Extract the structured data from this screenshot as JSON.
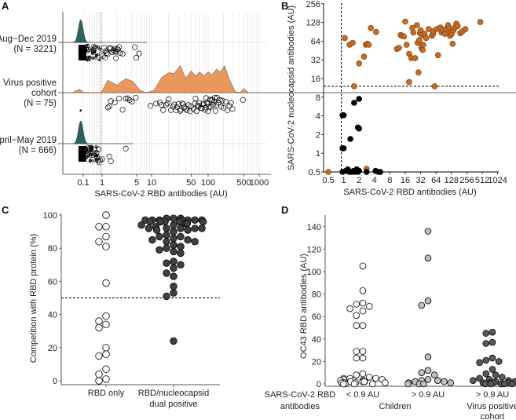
{
  "chart_data": [
    {
      "panel": "A",
      "type": "scatter",
      "subtype": "raincloud (density + jittered points)",
      "xlabel": "SARS-CoV-2 RBD antibodies (AU)",
      "xscale": "pseudo-log",
      "xlim": [
        0.03,
        1100
      ],
      "xticks": [
        "0.1",
        "1",
        "5",
        "10",
        "50",
        "100",
        "500",
        "1000"
      ],
      "xtick_values": [
        0.1,
        1,
        5,
        10,
        50,
        100,
        500,
        1000
      ],
      "threshold_line": {
        "x": 0.9,
        "style": "dashed",
        "color": "#e8a0a0"
      },
      "grid": "vertical minor log gridlines",
      "groups": [
        {
          "label_lines": [
            "Aug−Dec 2019",
            "(N = 3221)"
          ],
          "density_color": "#2f5f5f",
          "density_peak_x": 0.085,
          "dense_cluster": {
            "x_from": 0.07,
            "x_to": 0.9
          },
          "points": [
            0.95,
            1.1,
            1.2,
            1.3,
            1.5,
            1.6,
            1.7,
            1.8,
            1.9,
            2.0,
            2.1,
            2.2,
            1.05,
            1.4,
            1.25,
            1.8,
            2.6,
            2.3,
            4.6,
            4.9,
            5.6,
            1.15,
            1.9
          ]
        },
        {
          "label_lines": [
            "Virus positive",
            "cohort",
            "(N = 75)"
          ],
          "density_color": "#e8975e",
          "density_curve": [
            [
              0.05,
              0
            ],
            [
              0.08,
              0.09
            ],
            [
              0.11,
              0
            ],
            [
              0.9,
              0
            ],
            [
              1.3,
              0.33
            ],
            [
              2.0,
              0.2
            ],
            [
              3.0,
              0.37
            ],
            [
              4.2,
              0.3
            ],
            [
              6,
              0.05
            ],
            [
              8,
              0
            ],
            [
              11,
              0.06
            ],
            [
              15,
              0.4
            ],
            [
              20,
              0.53
            ],
            [
              25,
              0.51
            ],
            [
              32,
              0.72
            ],
            [
              40,
              0.38
            ],
            [
              50,
              0.58
            ],
            [
              60,
              0.44
            ],
            [
              70,
              0.55
            ],
            [
              85,
              0.45
            ],
            [
              100,
              0.55
            ],
            [
              120,
              0.48
            ],
            [
              145,
              0.62
            ],
            [
              175,
              0.55
            ],
            [
              210,
              0.72
            ],
            [
              260,
              0.35
            ],
            [
              340,
              0.03
            ],
            [
              420,
              0
            ],
            [
              500,
              0.11
            ],
            [
              620,
              0
            ]
          ],
          "points": [
            0.085,
            1.3,
            1.4,
            1.5,
            1.8,
            2.2,
            2.6,
            3.0,
            3.3,
            3.6,
            4.0,
            4.8,
            9.5,
            12,
            14,
            15,
            16,
            18,
            19,
            20,
            22,
            24,
            25,
            27,
            28,
            30,
            32,
            33,
            35,
            36,
            38,
            40,
            42,
            45,
            48,
            50,
            55,
            58,
            60,
            62,
            65,
            68,
            70,
            74,
            78,
            80,
            84,
            88,
            90,
            92,
            95,
            98,
            100,
            104,
            108,
            112,
            118,
            120,
            125,
            130,
            135,
            140,
            145,
            150,
            160,
            170,
            180,
            190,
            200,
            220,
            240,
            260,
            280,
            300,
            480
          ]
        },
        {
          "label_lines": [
            "April−May 2019",
            "(N = 666)"
          ],
          "density_color": "#2f5f5f",
          "density_peak_x": 0.085,
          "dense_cluster": {
            "x_from": 0.07,
            "x_to": 0.6
          },
          "points": [
            0.6,
            0.7,
            0.8,
            1.0,
            1.4,
            1.5,
            3.0,
            0.5,
            0.55,
            0.65
          ]
        }
      ]
    },
    {
      "panel": "B",
      "type": "scatter",
      "xlabel": "SARS-CoV-2 RBD antibodies (AU)",
      "ylabel": "SARS-CoV-2 nucleocapsid antibodies (AU)",
      "xscale": "log2",
      "yscale": "log2",
      "xlim": [
        0.45,
        1024
      ],
      "ylim": [
        0.5,
        256
      ],
      "xticks": [
        "0.5",
        "1",
        "2",
        "4",
        "8",
        "16",
        "32",
        "64",
        "128",
        "256",
        "512",
        "1024"
      ],
      "yticks": [
        "0.5",
        "1",
        "2",
        "4",
        "8",
        "16",
        "32",
        "64",
        "128",
        "256"
      ],
      "threshold_x": 0.9,
      "threshold_y": 12,
      "series": [
        {
          "name": "dual positive (orange)",
          "color": "#c96a21",
          "points": [
            [
              0.5,
              0.5
            ],
            [
              1.05,
              72
            ],
            [
              1.3,
              56
            ],
            [
              1.5,
              60
            ],
            [
              1.6,
              12
            ],
            [
              2.0,
              28
            ],
            [
              2.5,
              36
            ],
            [
              2.7,
              56
            ],
            [
              2.9,
              58
            ],
            [
              3.1,
              56
            ],
            [
              3.4,
              104
            ],
            [
              4.3,
              90
            ],
            [
              2.8,
              0.56
            ],
            [
              11,
              48
            ],
            [
              12,
              50
            ],
            [
              13,
              80
            ],
            [
              14,
              78
            ],
            [
              15,
              76
            ],
            [
              16,
              132
            ],
            [
              17,
              56
            ],
            [
              19,
              40
            ],
            [
              19,
              14
            ],
            [
              21,
              34
            ],
            [
              22,
              104
            ],
            [
              23,
              88
            ],
            [
              25,
              34
            ],
            [
              27,
              116
            ],
            [
              28,
              60
            ],
            [
              29,
              20
            ],
            [
              30,
              66
            ],
            [
              31,
              86
            ],
            [
              32,
              96
            ],
            [
              33,
              50
            ],
            [
              34,
              80
            ],
            [
              35,
              46
            ],
            [
              36,
              56
            ],
            [
              38,
              84
            ],
            [
              41,
              72
            ],
            [
              46,
              100
            ],
            [
              53,
              78
            ],
            [
              56,
              84
            ],
            [
              57,
              92
            ],
            [
              60,
              12
            ],
            [
              66,
              100
            ],
            [
              70,
              38
            ],
            [
              78,
              106
            ],
            [
              82,
              88
            ],
            [
              86,
              96
            ],
            [
              96,
              84
            ],
            [
              100,
              100
            ],
            [
              110,
              116
            ],
            [
              115,
              104
            ],
            [
              120,
              78
            ],
            [
              125,
              90
            ],
            [
              130,
              84
            ],
            [
              135,
              58
            ],
            [
              140,
              96
            ],
            [
              150,
              106
            ],
            [
              160,
              122
            ],
            [
              170,
              112
            ],
            [
              190,
              86
            ],
            [
              210,
              92
            ],
            [
              240,
              100
            ],
            [
              470,
              130
            ]
          ]
        },
        {
          "name": "RBD positive only (black)",
          "color": "#000000",
          "points": [
            [
              0.95,
              4.1
            ],
            [
              1.0,
              4.1
            ],
            [
              0.95,
              1.2
            ],
            [
              1.0,
              1.2
            ],
            [
              1.35,
              1.7
            ],
            [
              1.6,
              6.5
            ],
            [
              2.0,
              7.5
            ],
            [
              1.9,
              2.6
            ],
            [
              2.0,
              2.5
            ],
            [
              0.95,
              0.5
            ],
            [
              1.1,
              0.52
            ],
            [
              1.2,
              0.55
            ],
            [
              1.3,
              0.5
            ],
            [
              1.45,
              0.5
            ],
            [
              1.55,
              0.52
            ],
            [
              1.65,
              0.5
            ],
            [
              1.8,
              0.55
            ],
            [
              1.9,
              0.5
            ],
            [
              2.0,
              0.52
            ],
            [
              2.8,
              0.5
            ],
            [
              4.2,
              0.52
            ],
            [
              4.8,
              0.5
            ],
            [
              5.2,
              0.5
            ]
          ]
        }
      ]
    },
    {
      "panel": "C",
      "type": "scatter",
      "subtype": "beeswarm",
      "ylabel": "Competition with RBD protein (%)",
      "ylim": [
        0,
        100
      ],
      "yticks": [
        "0",
        "20",
        "40",
        "60",
        "80",
        "100"
      ],
      "threshold_y": 50,
      "categories": [
        [
          "RBD only"
        ],
        [
          "RBD/nucleocapsid",
          "dual positive"
        ]
      ],
      "series": [
        {
          "name": "RBD only",
          "fill": "#ffffff",
          "stroke": "#000000",
          "values": [
            100,
            93,
            93,
            87,
            84,
            81,
            59,
            39,
            36,
            34,
            32,
            20,
            16,
            15,
            7,
            4,
            1,
            0
          ]
        },
        {
          "name": "RBD/nucleocapsid dual positive",
          "fill": "#404040",
          "stroke": "#000000",
          "values": [
            98,
            98,
            98,
            97,
            97,
            97,
            97,
            97,
            97,
            97,
            96,
            96,
            96,
            96,
            96,
            95,
            95,
            94,
            94,
            93,
            92,
            92,
            92,
            92,
            92,
            91,
            91,
            90,
            88,
            87,
            87,
            86,
            85,
            85,
            84,
            84,
            82,
            81,
            80,
            79,
            78,
            77,
            72,
            71,
            70,
            68,
            65,
            63,
            57,
            53,
            51,
            24
          ]
        }
      ]
    },
    {
      "panel": "D",
      "type": "scatter",
      "subtype": "beeswarm",
      "ylabel": "OC43 RBD antibodies (AU)",
      "ylim": [
        0,
        145
      ],
      "yticks": [
        "0",
        "20",
        "40",
        "60",
        "80",
        "100",
        "120",
        "140"
      ],
      "row_label": [
        "SARS-CoV-2 RBD",
        "antibodies"
      ],
      "categories": [
        "< 0.9 AU",
        "> 0.9 AU",
        "> 0.9 AU"
      ],
      "group_labels": [
        {
          "text": [
            "Children"
          ],
          "spans": [
            0,
            1
          ]
        },
        {
          "text": [
            "Virus positive",
            "cohort"
          ],
          "spans": [
            2,
            2
          ]
        }
      ],
      "series": [
        {
          "name": "Children < 0.9 AU",
          "fill": "#ffffff",
          "stroke": "#000000",
          "values": [
            105,
            83,
            72,
            71,
            69,
            67,
            65,
            61,
            52,
            52,
            29,
            29,
            23,
            23,
            9,
            8,
            6,
            5,
            5,
            5,
            4,
            4,
            3,
            3,
            3,
            2,
            2,
            2,
            2,
            1,
            1,
            1,
            1,
            1,
            0,
            0,
            0,
            0
          ]
        },
        {
          "name": "Children > 0.9 AU",
          "fill": "#c0c0c0",
          "stroke": "#000000",
          "values": [
            136,
            112,
            74,
            70,
            24,
            12,
            10,
            8,
            4,
            3,
            3,
            2,
            2,
            1,
            1,
            0,
            0,
            0
          ]
        },
        {
          "name": "Virus positive cohort > 0.9 AU",
          "fill": "#5a5a5a",
          "stroke": "#000000",
          "values": [
            46,
            45,
            37,
            36,
            23,
            21,
            20,
            19,
            13,
            9,
            8,
            6,
            5,
            4,
            3,
            3,
            2,
            2,
            1,
            1,
            1,
            1,
            0,
            0,
            0,
            0,
            0,
            0
          ]
        }
      ]
    }
  ],
  "panel_letters": [
    "A",
    "B",
    "C",
    "D"
  ]
}
